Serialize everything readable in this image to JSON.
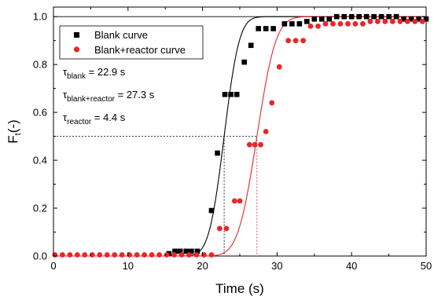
{
  "chart_data": {
    "type": "scatter",
    "xlabel": "Time (s)",
    "ylabel_main": "F",
    "ylabel_sub": "t",
    "ylabel_suffix": "(-)",
    "xlim": [
      0,
      50
    ],
    "ylim": [
      0,
      1.04
    ],
    "xticks": [
      0,
      10,
      20,
      30,
      40,
      50
    ],
    "yticks": [
      0.0,
      0.2,
      0.4,
      0.6,
      0.8,
      1.0
    ],
    "xtick_labels": [
      "0",
      "10",
      "20",
      "30",
      "40",
      "50"
    ],
    "ytick_labels": [
      "0.0",
      "0.2",
      "0.4",
      "0.6",
      "0.8",
      "1.0"
    ],
    "grid": false,
    "legend_position": "top-left",
    "series": [
      {
        "name": "Blank curve",
        "marker": "square",
        "color": "#000000",
        "points": [
          [
            15.5,
            0.01
          ],
          [
            16.3,
            0.02
          ],
          [
            17.0,
            0.02
          ],
          [
            17.8,
            0.02
          ],
          [
            18.5,
            0.02
          ],
          [
            19.3,
            0.02
          ],
          [
            21.2,
            0.19
          ],
          [
            22.0,
            0.43
          ],
          [
            23.0,
            0.675
          ],
          [
            23.8,
            0.675
          ],
          [
            24.6,
            0.675
          ],
          [
            25.6,
            0.81
          ],
          [
            26.5,
            0.88
          ],
          [
            27.5,
            0.95
          ],
          [
            28.5,
            0.95
          ],
          [
            29.5,
            0.95
          ],
          [
            31.0,
            0.97
          ],
          [
            32.0,
            0.97
          ],
          [
            33.0,
            0.97
          ],
          [
            34.0,
            0.98
          ],
          [
            35.0,
            0.99
          ],
          [
            36.0,
            0.99
          ],
          [
            37.0,
            0.99
          ],
          [
            38.0,
            1.0
          ],
          [
            39.0,
            1.0
          ],
          [
            40.0,
            1.0
          ],
          [
            41.0,
            1.0
          ],
          [
            42.0,
            1.0
          ],
          [
            43.0,
            1.0
          ],
          [
            44.0,
            1.0
          ],
          [
            45.0,
            1.0
          ],
          [
            46.0,
            1.0
          ],
          [
            47.0,
            0.99
          ],
          [
            48.0,
            0.99
          ],
          [
            49.0,
            0.99
          ],
          [
            50.0,
            0.99
          ]
        ]
      },
      {
        "name": "Blank+reactor curve",
        "marker": "circle",
        "color": "#e8262a",
        "points": [
          [
            0.2,
            0.005
          ],
          [
            1.2,
            0.005
          ],
          [
            2.2,
            0.005
          ],
          [
            3.2,
            0.005
          ],
          [
            4.2,
            0.005
          ],
          [
            5.2,
            0.005
          ],
          [
            6.2,
            0.005
          ],
          [
            7.2,
            0.005
          ],
          [
            8.2,
            0.005
          ],
          [
            9.2,
            0.005
          ],
          [
            10.2,
            0.005
          ],
          [
            11.2,
            0.005
          ],
          [
            12.2,
            0.005
          ],
          [
            13.2,
            0.005
          ],
          [
            14.2,
            0.005
          ],
          [
            15.2,
            0.005
          ],
          [
            16.2,
            0.005
          ],
          [
            17.2,
            0.005
          ],
          [
            18.2,
            0.005
          ],
          [
            19.2,
            0.005
          ],
          [
            20.2,
            0.005
          ],
          [
            21.2,
            0.005
          ],
          [
            22.3,
            0.115
          ],
          [
            23.2,
            0.115
          ],
          [
            24.3,
            0.23
          ],
          [
            25.0,
            0.23
          ],
          [
            26.3,
            0.465
          ],
          [
            27.0,
            0.465
          ],
          [
            27.8,
            0.465
          ],
          [
            28.5,
            0.52
          ],
          [
            29.3,
            0.64
          ],
          [
            30.3,
            0.79
          ],
          [
            31.5,
            0.9
          ],
          [
            32.5,
            0.9
          ],
          [
            33.5,
            0.9
          ],
          [
            34.5,
            0.96
          ],
          [
            35.5,
            0.96
          ],
          [
            36.5,
            0.97
          ],
          [
            37.5,
            0.97
          ],
          [
            38.5,
            0.97
          ],
          [
            39.5,
            0.97
          ],
          [
            40.5,
            0.97
          ],
          [
            41.5,
            0.97
          ],
          [
            42.5,
            0.98
          ],
          [
            43.5,
            0.98
          ],
          [
            44.5,
            0.98
          ],
          [
            45.5,
            0.98
          ],
          [
            46.5,
            0.98
          ],
          [
            47.5,
            0.98
          ],
          [
            48.5,
            0.98
          ],
          [
            49.5,
            0.98
          ]
        ]
      }
    ],
    "fit_curves": [
      {
        "series": "Blank curve",
        "color": "#000000",
        "center": 22.9,
        "sigma": 1.6
      },
      {
        "series": "Blank+reactor curve",
        "color": "#e8262a",
        "center": 27.3,
        "sigma": 2.0
      }
    ],
    "reference_lines": {
      "horizontal_y": 0.5,
      "vertical_x": [
        {
          "x": 22.9,
          "color": "#000000"
        },
        {
          "x": 27.3,
          "color": "#e8262a"
        }
      ],
      "top_line_y": 1.0
    },
    "annotations": [
      {
        "symbol": "τ",
        "sub": "blank",
        "text": " = 22.9 s"
      },
      {
        "symbol": "τ",
        "sub": "blank+reactor",
        "text": " = 27.3 s"
      },
      {
        "symbol": "τ",
        "sub": "reactor",
        "text": " = 4.4 s"
      }
    ]
  }
}
